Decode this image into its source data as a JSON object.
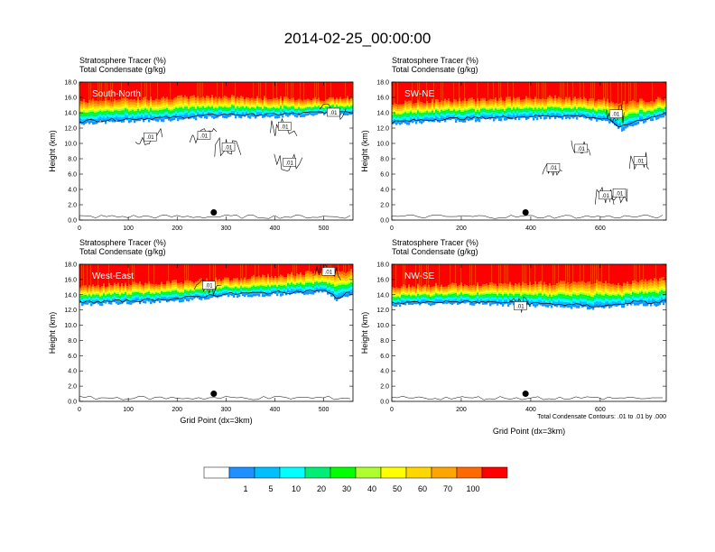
{
  "title": "2014-02-25_00:00:00",
  "footnote": "Total Condensate Contours: .01 to .01 by .000",
  "colorbar": {
    "colors": [
      "#ffffff",
      "#1e90ff",
      "#00bfff",
      "#00ffff",
      "#00ee76",
      "#00ff00",
      "#adff2f",
      "#ffff00",
      "#ffd700",
      "#ffa500",
      "#ff6a00",
      "#ff0000"
    ],
    "labels": [
      "1",
      "5",
      "10",
      "20",
      "30",
      "40",
      "50",
      "60",
      "70",
      "100"
    ]
  },
  "chart_data": [
    {
      "type": "heatmap",
      "panel": "South-North",
      "header_line1": "Stratosphere Tracer   (%)",
      "header_line2": "Total Condensate   (g/kg)",
      "ylabel": "Height (km)",
      "xlabel": "",
      "xlim": [
        0,
        560
      ],
      "ylim": [
        0,
        18
      ],
      "xticks": [
        "0",
        "100",
        "200",
        "300",
        "400",
        "500"
      ],
      "xtick_values": [
        0,
        100,
        200,
        300,
        400,
        500
      ],
      "yticks": [
        "0.0",
        "2.0",
        "4.0",
        "6.0",
        "8.0",
        "10.0",
        "12.0",
        "14.0",
        "16.0",
        "18.0"
      ],
      "tracer_profile": {
        "x": [
          0,
          100,
          200,
          250,
          300,
          350,
          400,
          450,
          500,
          560
        ],
        "tracer_base_km": [
          12.6,
          12.9,
          13.1,
          13.3,
          13.5,
          13.4,
          13.5,
          13.6,
          13.8,
          13.9
        ],
        "red_base_km": [
          15.5,
          15.8,
          16.0,
          16.1,
          16.1,
          15.9,
          15.9,
          15.8,
          15.8,
          15.9
        ]
      },
      "contour_labels": [
        ".01",
        ".01",
        ".01",
        ".01",
        ".01",
        ".01"
      ],
      "contour_label_pos": [
        {
          "x": 145,
          "y": 10.8
        },
        {
          "x": 255,
          "y": 11.0
        },
        {
          "x": 305,
          "y": 9.5
        },
        {
          "x": 420,
          "y": 12.2
        },
        {
          "x": 430,
          "y": 7.5
        },
        {
          "x": 520,
          "y": 14.0
        }
      ],
      "marker": {
        "x": 275,
        "y": 1.0
      }
    },
    {
      "type": "heatmap",
      "panel": "SW-NE",
      "header_line1": "Stratosphere Tracer   (%)",
      "header_line2": "Total Condensate   (g/kg)",
      "ylabel": "Height (km)",
      "xlabel": "",
      "xlim": [
        0,
        790
      ],
      "ylim": [
        0,
        18
      ],
      "xticks": [
        "0",
        "200",
        "400",
        "600"
      ],
      "xtick_values": [
        0,
        200,
        400,
        600
      ],
      "yticks": [
        "0.0",
        "2.0",
        "4.0",
        "6.0",
        "8.0",
        "10.0",
        "12.0",
        "14.0",
        "16.0",
        "18.0"
      ],
      "tracer_profile": {
        "x": [
          0,
          150,
          300,
          450,
          550,
          620,
          660,
          700,
          790
        ],
        "tracer_base_km": [
          12.5,
          12.9,
          13.1,
          13.3,
          13.3,
          12.8,
          11.8,
          12.6,
          13.6
        ],
        "red_base_km": [
          15.2,
          15.6,
          15.8,
          16.0,
          15.8,
          15.6,
          15.2,
          15.5,
          15.9
        ]
      },
      "contour_labels": [
        ".01",
        ".01",
        ".01",
        ".01",
        ".01",
        ".01"
      ],
      "contour_label_pos": [
        {
          "x": 465,
          "y": 6.8
        },
        {
          "x": 545,
          "y": 9.3
        },
        {
          "x": 645,
          "y": 13.8
        },
        {
          "x": 615,
          "y": 3.2
        },
        {
          "x": 655,
          "y": 3.5
        },
        {
          "x": 715,
          "y": 7.7
        }
      ],
      "marker": {
        "x": 385,
        "y": 1.0
      }
    },
    {
      "type": "heatmap",
      "panel": "West-East",
      "header_line1": "Stratosphere Tracer   (%)",
      "header_line2": "Total Condensate   (g/kg)",
      "ylabel": "Height (km)",
      "xlabel": "Grid Point (dx=3km)",
      "xlim": [
        0,
        560
      ],
      "ylim": [
        0,
        18
      ],
      "xticks": [
        "0",
        "100",
        "200",
        "300",
        "400",
        "500"
      ],
      "xtick_values": [
        0,
        100,
        200,
        300,
        400,
        500
      ],
      "yticks": [
        "0.0",
        "2.0",
        "4.0",
        "6.0",
        "8.0",
        "10.0",
        "12.0",
        "14.0",
        "16.0",
        "18.0"
      ],
      "tracer_profile": {
        "x": [
          0,
          100,
          200,
          250,
          300,
          350,
          400,
          450,
          500,
          530,
          560
        ],
        "tracer_base_km": [
          12.7,
          12.9,
          13.2,
          13.5,
          13.8,
          13.9,
          14.0,
          14.1,
          14.3,
          13.2,
          14.4
        ],
        "red_base_km": [
          15.1,
          15.4,
          15.7,
          15.9,
          16.1,
          16.3,
          16.5,
          16.8,
          17.0,
          16.8,
          17.2
        ]
      },
      "contour_labels": [
        ".01",
        ".01"
      ],
      "contour_label_pos": [
        {
          "x": 265,
          "y": 15.2
        },
        {
          "x": 510,
          "y": 17.0
        }
      ],
      "marker": {
        "x": 275,
        "y": 1.0
      }
    },
    {
      "type": "heatmap",
      "panel": "NW-SE",
      "header_line1": "Stratosphere Tracer   (%)",
      "header_line2": "Total Condensate   (g/kg)",
      "ylabel": "Height (km)",
      "xlabel": "Grid Point (dx=3km)",
      "xlim": [
        0,
        790
      ],
      "ylim": [
        0,
        18
      ],
      "xticks": [
        "0",
        "200",
        "400",
        "600"
      ],
      "xtick_values": [
        0,
        200,
        400,
        600
      ],
      "yticks": [
        "0.0",
        "2.0",
        "4.0",
        "6.0",
        "8.0",
        "10.0",
        "12.0",
        "14.0",
        "16.0",
        "18.0"
      ],
      "tracer_profile": {
        "x": [
          0,
          150,
          300,
          450,
          550,
          600,
          650,
          700,
          750,
          790
        ],
        "tracer_base_km": [
          12.6,
          12.8,
          12.7,
          12.5,
          12.3,
          12.2,
          12.4,
          12.8,
          12.6,
          12.9
        ],
        "red_base_km": [
          15.0,
          15.3,
          15.4,
          15.5,
          15.6,
          15.7,
          15.3,
          15.8,
          16.0,
          16.2
        ]
      },
      "contour_labels": [
        ".01"
      ],
      "contour_label_pos": [
        {
          "x": 370,
          "y": 12.5
        }
      ],
      "marker": {
        "x": 385,
        "y": 1.0
      }
    }
  ]
}
